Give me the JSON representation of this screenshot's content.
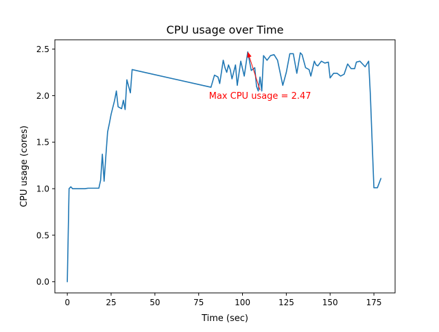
{
  "chart_data": {
    "type": "line",
    "title": "CPU usage over Time",
    "xlabel": "Time (sec)",
    "ylabel": "CPU usage (cores)",
    "xlim": [
      -7.1,
      187.1
    ],
    "ylim": [
      -0.12,
      2.6
    ],
    "xticks": [
      0,
      25,
      50,
      75,
      100,
      125,
      150,
      175
    ],
    "xtick_labels": [
      "0",
      "25",
      "50",
      "75",
      "100",
      "125",
      "150",
      "175"
    ],
    "yticks": [
      0.0,
      0.5,
      1.0,
      1.5,
      2.0,
      2.5
    ],
    "ytick_labels": [
      "0.0",
      "0.5",
      "1.0",
      "1.5",
      "2.0",
      "2.5"
    ],
    "grid": false,
    "legend": null,
    "colors": {
      "series": "#1f77b4",
      "annotation": "#ff0000",
      "axes": "#000000"
    },
    "series": [
      {
        "x": [
          0,
          1,
          2,
          3,
          5,
          7,
          10,
          12,
          14,
          16,
          18,
          19,
          20,
          21,
          22,
          23,
          24,
          25,
          27,
          28,
          29,
          31,
          32,
          33,
          34,
          36,
          37,
          82,
          84,
          86,
          87,
          89,
          90,
          91,
          92,
          93,
          94,
          96,
          97,
          99,
          101,
          103,
          105,
          107,
          108,
          109,
          110,
          111,
          112,
          114,
          116,
          118,
          120,
          121,
          123,
          125,
          127,
          129,
          131,
          133,
          134,
          136,
          138,
          139,
          141,
          142,
          143,
          145,
          147,
          149,
          150,
          152,
          154,
          156,
          158,
          160,
          162,
          164,
          165,
          167,
          169,
          170,
          172,
          173,
          174,
          175,
          176,
          177,
          178,
          179
        ],
        "y": [
          0.0,
          1.0,
          1.02,
          1.0,
          1.0,
          1.0,
          1.0,
          1.005,
          1.005,
          1.005,
          1.005,
          1.09,
          1.37,
          1.08,
          1.35,
          1.61,
          1.7,
          1.8,
          1.95,
          2.05,
          1.88,
          1.86,
          1.95,
          1.85,
          2.17,
          2.03,
          2.28,
          2.09,
          2.22,
          2.2,
          2.13,
          2.38,
          2.3,
          2.25,
          2.33,
          2.28,
          2.18,
          2.33,
          2.11,
          2.37,
          2.21,
          2.47,
          2.27,
          2.3,
          2.1,
          2.05,
          2.2,
          2.05,
          2.43,
          2.38,
          2.43,
          2.44,
          2.38,
          2.29,
          2.11,
          2.25,
          2.45,
          2.45,
          2.24,
          2.46,
          2.44,
          2.3,
          2.28,
          2.21,
          2.37,
          2.33,
          2.32,
          2.37,
          2.35,
          2.36,
          2.19,
          2.24,
          2.24,
          2.21,
          2.23,
          2.34,
          2.29,
          2.29,
          2.36,
          2.37,
          2.33,
          2.31,
          2.37,
          2.0,
          1.5,
          1.01,
          1.01,
          1.01,
          1.06,
          1.11
        ]
      }
    ],
    "annotations": [
      {
        "text": "Max CPU usage = 2.47",
        "point": [
          103,
          2.47
        ],
        "text_anchor": [
          110,
          2.0
        ]
      }
    ]
  }
}
